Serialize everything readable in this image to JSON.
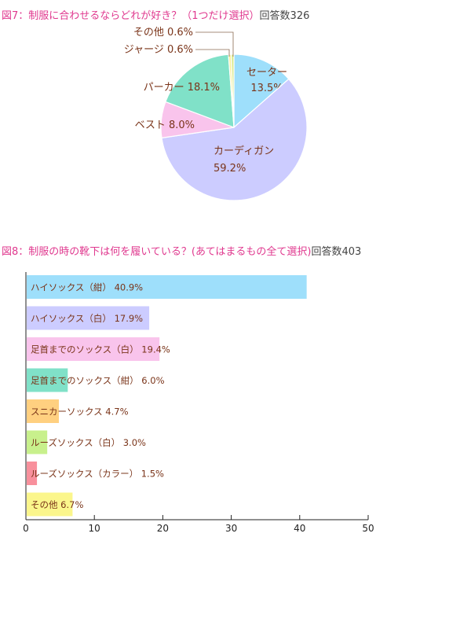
{
  "fig7": {
    "title": "図7：制服に合わせるならどれが好き？（1つだけ選択）",
    "count_label": "回答数326"
  },
  "fig8": {
    "title": "図8：制服の時の靴下は何を履いている？(あてはまるもの全て選択)",
    "count_label": "回答数403"
  },
  "colors": {
    "title_pink": "#e0398f",
    "label_brown": "#7a3419"
  },
  "chart_data": [
    {
      "type": "pie",
      "title": "図7：制服に合わせるならどれが好き？（1つだけ選択）",
      "slices": [
        {
          "label": "セーター",
          "value": 13.5,
          "display": "13.5%",
          "color": "#9edffb"
        },
        {
          "label": "カーディガン",
          "value": 59.2,
          "display": "59.2%",
          "color": "#ccccff"
        },
        {
          "label": "ベスト",
          "value": 8.0,
          "display": "8.0%",
          "color": "#f9c4ec"
        },
        {
          "label": "パーカー",
          "value": 18.1,
          "display": "18.1%",
          "color": "#80e1c8"
        },
        {
          "label": "ジャージ",
          "value": 0.6,
          "display": "0.6%",
          "color": "#f8f0a0"
        },
        {
          "label": "その他",
          "value": 0.6,
          "display": "0.6%",
          "color": "#d9e98a"
        }
      ]
    },
    {
      "type": "bar",
      "orientation": "horizontal",
      "title": "図8：制服の時の靴下は何を履いている？(あてはまるもの全て選択)",
      "categories": [
        "ハイソックス（紺）",
        "ハイソックス（白）",
        "足首までのソックス（白）",
        "足首までのソックス（紺）",
        "スニカーソックス",
        "ルーズソックス（白）",
        "ルーズソックス（カラー）",
        "その他"
      ],
      "values": [
        40.9,
        17.9,
        19.4,
        6.0,
        4.7,
        3.0,
        1.5,
        6.7
      ],
      "value_labels": [
        "40.9%",
        "17.9%",
        "19.4%",
        "6.0%",
        "4.7%",
        "3.0%",
        "1.5%",
        "6.7%"
      ],
      "colors": [
        "#9edffb",
        "#ccccff",
        "#f9c4ec",
        "#80e1c8",
        "#ffd080",
        "#c8f08c",
        "#f8909c",
        "#fbf68c"
      ],
      "xticks": [
        "0",
        "10",
        "20",
        "30",
        "40",
        "50"
      ],
      "xlim": [
        0,
        50
      ],
      "grid": false
    }
  ]
}
